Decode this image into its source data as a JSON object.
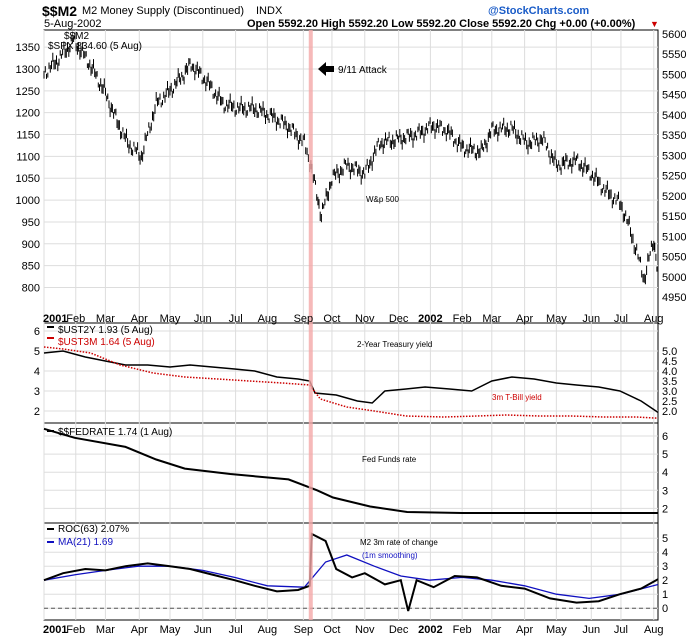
{
  "header": {
    "symbol": "$$M2",
    "name": "M2 Money Supply (Discontinued)",
    "exchange": "INDX",
    "date": "5-Aug-2002",
    "ohlc": "Open 5592.20  High 5592.20  Low 5592.20  Close 5592.20  Chg +0.00 (+0.00%)",
    "chg_marker": "▼",
    "copyright": "@StockCharts.com"
  },
  "annotation": {
    "text": "9/11 Attack",
    "date": "2001-09-11"
  },
  "x_axis": {
    "labels": [
      "2001",
      "Feb",
      "Mar",
      "Apr",
      "May",
      "Jun",
      "Jul",
      "Aug",
      "Sep",
      "Oct",
      "Nov",
      "Dec",
      "2002",
      "Feb",
      "Mar",
      "Apr",
      "May",
      "Jun",
      "Jul",
      "Aug"
    ]
  },
  "chart_data": [
    {
      "type": "line",
      "panel": "price",
      "legend": [
        "$$M2",
        "$SPX 834.60 (5 Aug)"
      ],
      "title": "",
      "label_text": "W&p 500",
      "y_left_ticks": [
        800,
        850,
        900,
        950,
        1000,
        1050,
        1100,
        1150,
        1200,
        1250,
        1300,
        1350
      ],
      "y_right_ticks": [
        4950,
        5000,
        5050,
        5100,
        5150,
        5200,
        5250,
        5300,
        5350,
        5400,
        5450,
        5500,
        5550,
        5600
      ],
      "y_left_range": [
        760,
        1380
      ],
      "series": [
        {
          "name": "$SPX",
          "color": "#000000",
          "x": [
            "2001-01-02",
            "2001-01-15",
            "2001-01-30",
            "2001-02-12",
            "2001-02-28",
            "2001-03-12",
            "2001-03-22",
            "2001-04-04",
            "2001-04-18",
            "2001-05-01",
            "2001-05-21",
            "2001-06-05",
            "2001-06-20",
            "2001-07-05",
            "2001-07-20",
            "2001-08-06",
            "2001-08-20",
            "2001-09-05",
            "2001-09-10",
            "2001-09-21",
            "2001-10-01",
            "2001-10-15",
            "2001-11-01",
            "2001-11-15",
            "2001-12-03",
            "2001-12-20",
            "2002-01-04",
            "2002-01-17",
            "2002-02-01",
            "2002-02-19",
            "2002-03-01",
            "2002-03-19",
            "2002-04-03",
            "2002-04-18",
            "2002-05-01",
            "2002-05-20",
            "2002-06-03",
            "2002-06-17",
            "2002-07-01",
            "2002-07-10",
            "2002-07-23",
            "2002-08-01",
            "2002-08-05"
          ],
          "values": [
            1290,
            1320,
            1365,
            1320,
            1250,
            1180,
            1130,
            1100,
            1220,
            1250,
            1310,
            1270,
            1220,
            1210,
            1210,
            1190,
            1170,
            1130,
            1090,
            965,
            1050,
            1080,
            1060,
            1130,
            1140,
            1150,
            1170,
            1160,
            1120,
            1110,
            1160,
            1165,
            1130,
            1140,
            1080,
            1090,
            1060,
            1020,
            990,
            930,
            820,
            910,
            834
          ]
        },
        {
          "name": "$$M2",
          "color": "#000000",
          "unit": "right axis"
        }
      ]
    },
    {
      "type": "line",
      "panel": "yields",
      "series": [
        {
          "name": "$UST2Y 1.93 (5 Aug)",
          "color": "#000000",
          "style": "solid",
          "label_text": "2-Year Treasury yield",
          "x": [
            "2001-01-02",
            "2001-01-20",
            "2001-02-10",
            "2001-03-01",
            "2001-03-20",
            "2001-04-10",
            "2001-05-01",
            "2001-05-20",
            "2001-06-10",
            "2001-07-01",
            "2001-07-20",
            "2001-08-10",
            "2001-08-30",
            "2001-09-10",
            "2001-09-15",
            "2001-10-05",
            "2001-10-25",
            "2001-11-08",
            "2001-11-20",
            "2001-12-10",
            "2001-12-28",
            "2002-01-20",
            "2002-02-10",
            "2002-03-01",
            "2002-03-20",
            "2002-04-10",
            "2002-05-01",
            "2002-05-20",
            "2002-06-10",
            "2002-06-30",
            "2002-07-20",
            "2002-08-05"
          ],
          "values": [
            4.9,
            5.0,
            4.7,
            4.5,
            4.3,
            4.3,
            4.2,
            4.3,
            4.2,
            4.1,
            4.0,
            3.7,
            3.6,
            3.5,
            2.9,
            2.8,
            2.5,
            2.4,
            3.0,
            3.1,
            3.2,
            3.1,
            3.0,
            3.5,
            3.7,
            3.6,
            3.4,
            3.3,
            3.2,
            3.0,
            2.5,
            1.93
          ]
        },
        {
          "name": "$UST3M 1.64 (5 Aug)",
          "color": "#cc0000",
          "style": "dotted",
          "label_text": "3m T-Bill yield",
          "x": [
            "2001-01-02",
            "2001-01-20",
            "2001-02-15",
            "2001-03-15",
            "2001-04-15",
            "2001-05-15",
            "2001-06-15",
            "2001-07-15",
            "2001-08-15",
            "2001-09-10",
            "2001-09-20",
            "2001-10-15",
            "2001-11-10",
            "2001-12-10",
            "2002-01-15",
            "2002-02-15",
            "2002-03-15",
            "2002-04-15",
            "2002-05-15",
            "2002-06-15",
            "2002-07-15",
            "2002-08-05"
          ],
          "values": [
            5.2,
            5.1,
            4.9,
            4.3,
            3.9,
            3.7,
            3.6,
            3.5,
            3.4,
            3.3,
            2.6,
            2.2,
            2.0,
            1.75,
            1.7,
            1.75,
            1.8,
            1.75,
            1.75,
            1.7,
            1.7,
            1.64
          ]
        }
      ],
      "y_left_ticks": [
        2,
        3,
        4,
        5,
        6
      ],
      "y_right_ticks": [
        2.0,
        2.5,
        3.0,
        3.5,
        4.0,
        4.5,
        5.0
      ],
      "y_range": [
        1.5,
        6.2
      ]
    },
    {
      "type": "line",
      "panel": "fedrate",
      "series": [
        {
          "name": "$$FEDRATE 1.74 (1 Aug)",
          "color": "#000000",
          "label_text": "Fed Funds rate",
          "x": [
            "2001-01-02",
            "2001-01-31",
            "2001-03-20",
            "2001-04-18",
            "2001-05-15",
            "2001-06-27",
            "2001-08-21",
            "2001-09-17",
            "2001-10-02",
            "2001-11-06",
            "2001-12-11",
            "2002-02-01",
            "2002-08-05"
          ],
          "values": [
            6.4,
            5.9,
            5.4,
            4.7,
            4.2,
            3.9,
            3.6,
            3.0,
            2.6,
            2.1,
            1.8,
            1.74,
            1.74
          ]
        }
      ],
      "y_right_ticks": [
        2,
        3,
        4,
        5,
        6
      ],
      "y_range": [
        1.3,
        6.5
      ]
    },
    {
      "type": "line",
      "panel": "roc",
      "series": [
        {
          "name": "ROC(63) 2.07%",
          "color": "#000000",
          "label_text": "M2 3m rate of change",
          "x": [
            "2001-01-02",
            "2001-01-20",
            "2001-02-10",
            "2001-03-01",
            "2001-03-20",
            "2001-04-10",
            "2001-05-01",
            "2001-05-20",
            "2001-06-10",
            "2001-07-01",
            "2001-07-20",
            "2001-08-10",
            "2001-08-30",
            "2001-09-10",
            "2001-09-12",
            "2001-09-25",
            "2001-10-05",
            "2001-10-20",
            "2001-11-01",
            "2001-11-20",
            "2001-12-05",
            "2001-12-12",
            "2001-12-20",
            "2002-01-05",
            "2002-01-25",
            "2002-02-15",
            "2002-03-10",
            "2002-04-01",
            "2002-04-25",
            "2002-05-20",
            "2002-06-10",
            "2002-06-30",
            "2002-07-20",
            "2002-08-05"
          ],
          "values": [
            2.0,
            2.5,
            2.8,
            2.7,
            3.0,
            3.2,
            3.0,
            2.8,
            2.4,
            2.0,
            1.6,
            1.2,
            1.3,
            1.6,
            5.3,
            4.8,
            2.8,
            2.2,
            2.5,
            1.7,
            2.0,
            -0.2,
            2.0,
            1.5,
            2.3,
            2.2,
            1.6,
            1.4,
            0.7,
            0.4,
            0.5,
            1.0,
            1.4,
            2.07
          ]
        },
        {
          "name": "MA(21) 1.69",
          "color": "#1010c0",
          "label_text": "(1m smoothing)",
          "x": [
            "2001-01-02",
            "2001-02-01",
            "2001-03-01",
            "2001-04-01",
            "2001-05-01",
            "2001-06-01",
            "2001-07-01",
            "2001-08-01",
            "2001-09-05",
            "2001-09-25",
            "2001-10-15",
            "2001-11-10",
            "2001-12-05",
            "2002-01-01",
            "2002-02-01",
            "2002-03-01",
            "2002-04-01",
            "2002-05-01",
            "2002-06-01",
            "2002-07-01",
            "2002-08-05"
          ],
          "values": [
            2.0,
            2.4,
            2.7,
            3.0,
            3.0,
            2.7,
            2.2,
            1.6,
            1.5,
            3.3,
            3.8,
            3.0,
            2.3,
            2.0,
            2.2,
            2.0,
            1.6,
            1.0,
            0.7,
            1.0,
            1.69
          ]
        }
      ],
      "y_right_ticks": [
        0,
        1,
        2,
        3,
        4,
        5
      ],
      "y_range": [
        -0.7,
        5.8
      ]
    }
  ]
}
